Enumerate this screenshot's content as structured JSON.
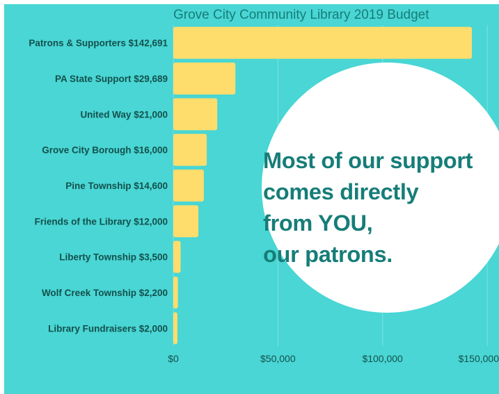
{
  "colors": {
    "background": "#49d6d4",
    "bar": "#ffdd6c",
    "text": "#14504c",
    "title": "#167d78",
    "grid": "#7fe3e1",
    "bubble": "#ffffff"
  },
  "callout": {
    "lines": [
      "Most of our support",
      "comes directly",
      "from YOU,",
      "our patrons."
    ]
  },
  "chart_data": {
    "type": "bar",
    "orientation": "horizontal",
    "title": "Grove City Community Library 2019 Budget",
    "categories": [
      "Patrons & Supporters $142,691",
      "PA State Support  $29,689",
      "United Way $21,000",
      "Grove City Borough $16,000",
      "Pine Township $14,600",
      "Friends of the Library $12,000",
      "Liberty Township $3,500",
      "Wolf Creek Township $2,200",
      "Library Fundraisers $2,000"
    ],
    "values": [
      142691,
      29689,
      21000,
      16000,
      14600,
      12000,
      3500,
      2200,
      2000
    ],
    "xlim": [
      0,
      150000
    ],
    "xticks": [
      0,
      50000,
      100000,
      150000
    ],
    "xtick_labels": [
      "$0",
      "$50,000",
      "$100,000",
      "$150,000"
    ],
    "grid": true
  }
}
